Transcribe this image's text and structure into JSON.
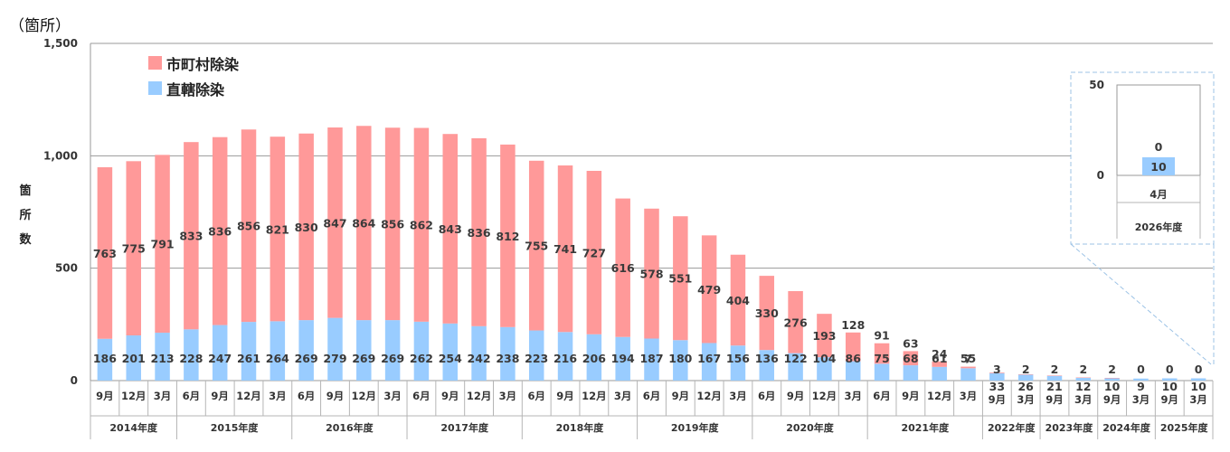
{
  "chart_data": [
    {
      "type": "bar",
      "stacked": true,
      "unit_label": "（箇所）",
      "ylabel": "箇所数",
      "ylim": [
        0,
        1500
      ],
      "yticks": [
        "0",
        "500",
        "1,000",
        "1,500"
      ],
      "grid": true,
      "legend_position": "top-left",
      "colors": {
        "municipal": "#ff9999",
        "direct": "#99ccff"
      },
      "categories": [
        "9月",
        "12月",
        "3月",
        "6月",
        "9月",
        "12月",
        "3月",
        "6月",
        "9月",
        "12月",
        "3月",
        "6月",
        "9月",
        "12月",
        "3月",
        "6月",
        "9月",
        "12月",
        "3月",
        "6月",
        "9月",
        "12月",
        "3月",
        "6月",
        "9月",
        "12月",
        "3月",
        "6月",
        "9月",
        "12月",
        "3月",
        "9月",
        "3月",
        "9月",
        "3月",
        "9月",
        "3月",
        "9月",
        "3月"
      ],
      "fiscal_years": [
        {
          "label": "2014年度",
          "count": 3
        },
        {
          "label": "2015年度",
          "count": 4
        },
        {
          "label": "2016年度",
          "count": 4
        },
        {
          "label": "2017年度",
          "count": 4
        },
        {
          "label": "2018年度",
          "count": 4
        },
        {
          "label": "2019年度",
          "count": 4
        },
        {
          "label": "2020年度",
          "count": 4
        },
        {
          "label": "2021年度",
          "count": 4
        },
        {
          "label": "2022年度",
          "count": 2
        },
        {
          "label": "2023年度",
          "count": 2
        },
        {
          "label": "2024年度",
          "count": 2
        },
        {
          "label": "2025年度",
          "count": 2
        }
      ],
      "series": [
        {
          "name": "市町村除染",
          "values": [
            763,
            775,
            791,
            833,
            836,
            856,
            821,
            830,
            847,
            864,
            856,
            862,
            843,
            836,
            812,
            755,
            741,
            727,
            616,
            578,
            551,
            479,
            404,
            330,
            276,
            193,
            128,
            91,
            63,
            24,
            7,
            3,
            2,
            2,
            2,
            2,
            0,
            0,
            0
          ]
        },
        {
          "name": "直轄除染",
          "values": [
            186,
            201,
            213,
            228,
            247,
            261,
            264,
            269,
            279,
            269,
            269,
            262,
            254,
            242,
            238,
            223,
            216,
            206,
            194,
            187,
            180,
            167,
            156,
            136,
            122,
            104,
            86,
            75,
            68,
            61,
            55,
            33,
            26,
            21,
            12,
            10,
            9,
            10,
            10
          ]
        }
      ]
    },
    {
      "type": "bar",
      "stacked": true,
      "inset": true,
      "ylim": [
        0,
        50
      ],
      "yticks": [
        "0",
        "50"
      ],
      "categories": [
        "4月"
      ],
      "fiscal_year": "2026年度",
      "series": [
        {
          "name": "市町村除染",
          "values": [
            0
          ]
        },
        {
          "name": "直轄除染",
          "values": [
            10
          ]
        }
      ]
    }
  ]
}
